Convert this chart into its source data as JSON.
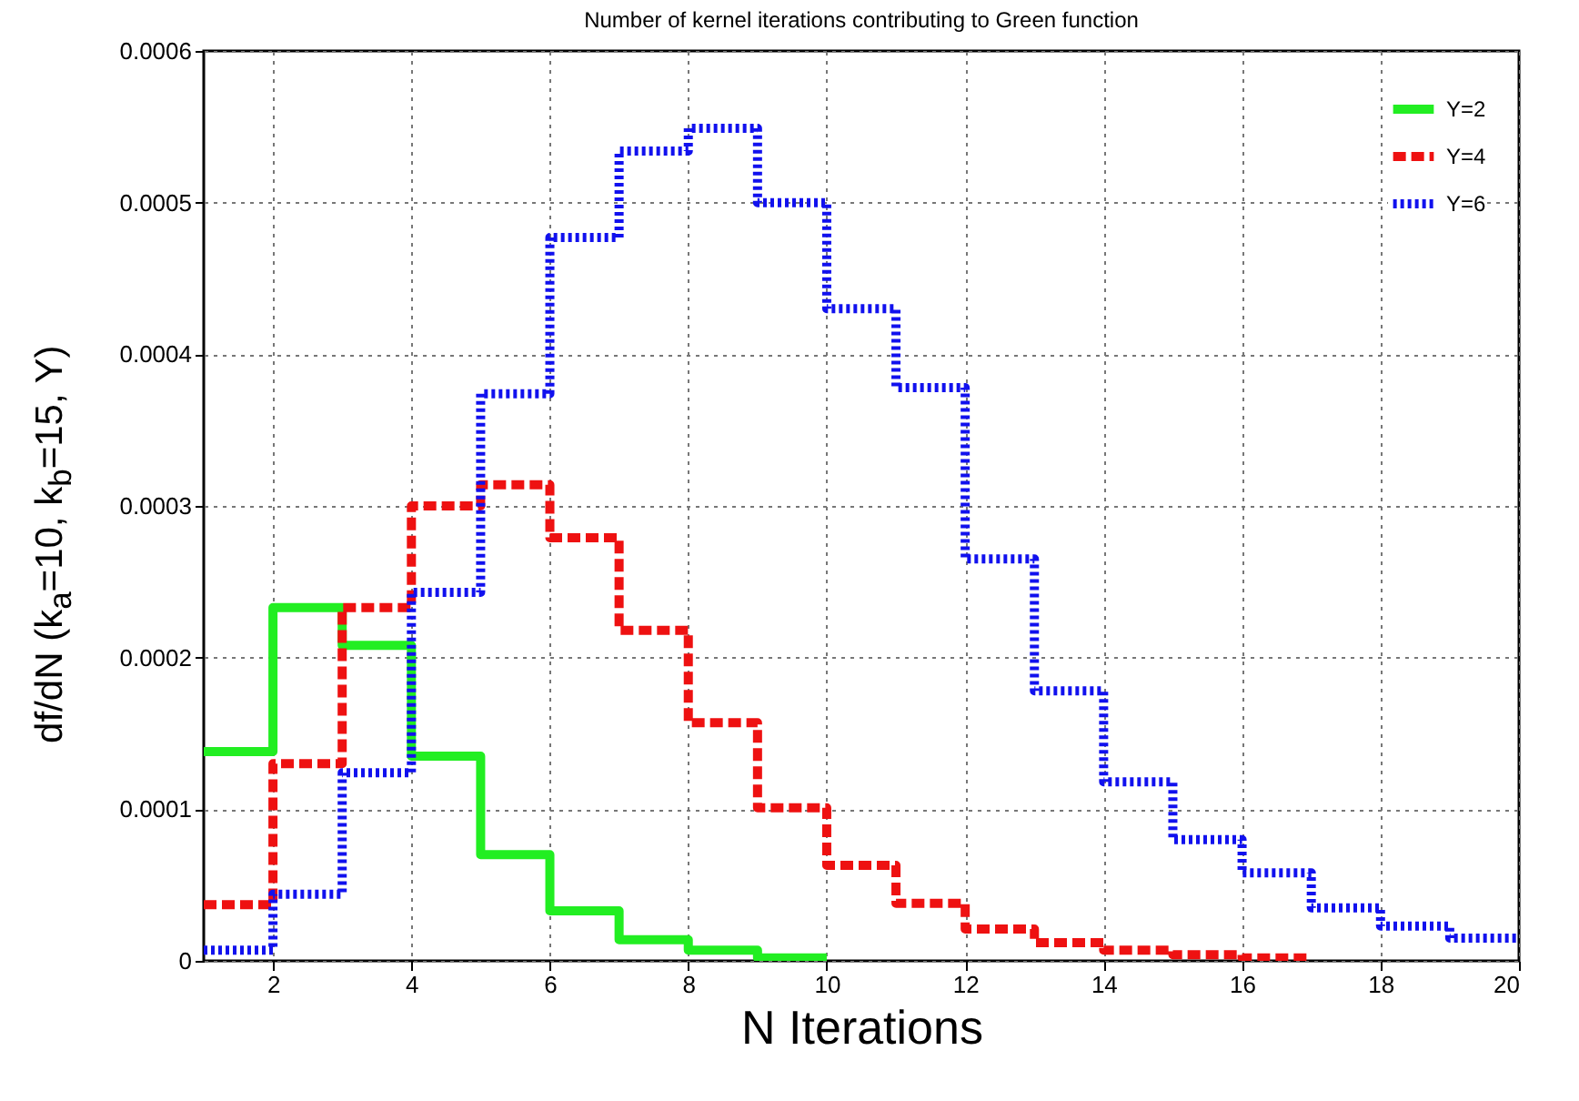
{
  "chart_data": {
    "type": "step",
    "title": "Number of kernel iterations contributing to Green function",
    "xlabel": "N Iterations",
    "ylabel": "df/dN  (k$_{a}$=10, k$_{b}$=15, Y)",
    "xlim": [
      1,
      20
    ],
    "xticks": [
      2,
      4,
      6,
      8,
      10,
      12,
      14,
      16,
      18,
      20
    ],
    "ylim": [
      0,
      0.0006
    ],
    "yticks": [
      0,
      0.0001,
      0.0002,
      0.0003,
      0.0004,
      0.0005,
      0.0006
    ],
    "grid": true,
    "legend": "top right",
    "series": [
      {
        "name": "Y=2",
        "color": "#22ee22",
        "line_style": "solid",
        "x": [
          1,
          2,
          3,
          4,
          5,
          6,
          7,
          8,
          9,
          10
        ],
        "values": [
          0.000138,
          0.000233,
          0.000208,
          0.000135,
          7e-05,
          3.3e-05,
          1.4e-05,
          7e-06,
          2e-06,
          2e-06
        ]
      },
      {
        "name": "Y=4",
        "color": "#ee1111",
        "line_style": "dashed",
        "x": [
          1,
          2,
          3,
          4,
          5,
          6,
          7,
          8,
          9,
          10,
          11,
          12,
          13,
          14,
          15,
          16,
          17
        ],
        "values": [
          3.7e-05,
          0.00013,
          0.000233,
          0.0003,
          0.000314,
          0.000279,
          0.000218,
          0.000157,
          0.000101,
          6.3e-05,
          3.8e-05,
          2.1e-05,
          1.2e-05,
          7e-06,
          4e-06,
          2e-06,
          2e-06
        ]
      },
      {
        "name": "Y=6",
        "color": "#1111ee",
        "line_style": "dotted",
        "x": [
          1,
          2,
          3,
          4,
          5,
          6,
          7,
          8,
          9,
          10,
          11,
          12,
          13,
          14,
          15,
          16,
          17,
          18,
          19,
          20
        ],
        "values": [
          7e-06,
          4.4e-05,
          0.000124,
          0.000243,
          0.000374,
          0.000477,
          0.000534,
          0.000549,
          0.0005,
          0.00043,
          0.000378,
          0.000265,
          0.000178,
          0.000118,
          8e-05,
          5.8e-05,
          3.5e-05,
          2.3e-05,
          1.5e-05,
          1.5e-05
        ]
      }
    ]
  }
}
